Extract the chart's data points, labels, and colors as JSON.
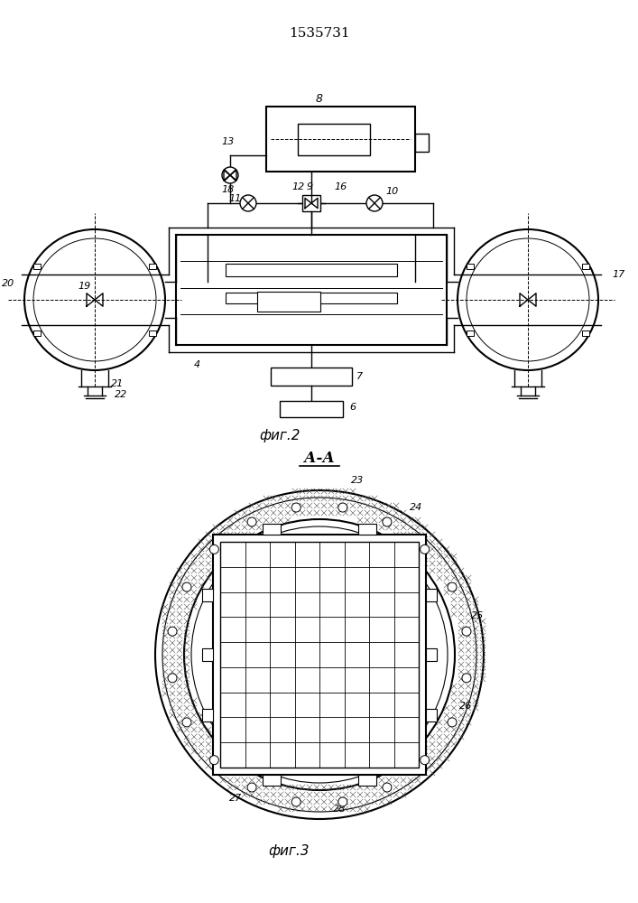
{
  "patent_number": "1535731",
  "fig2_caption": "фиг.2",
  "fig3_caption": "фиг.3",
  "fig3_label": "А-А",
  "bg_color": "#ffffff",
  "line_color": "#000000"
}
